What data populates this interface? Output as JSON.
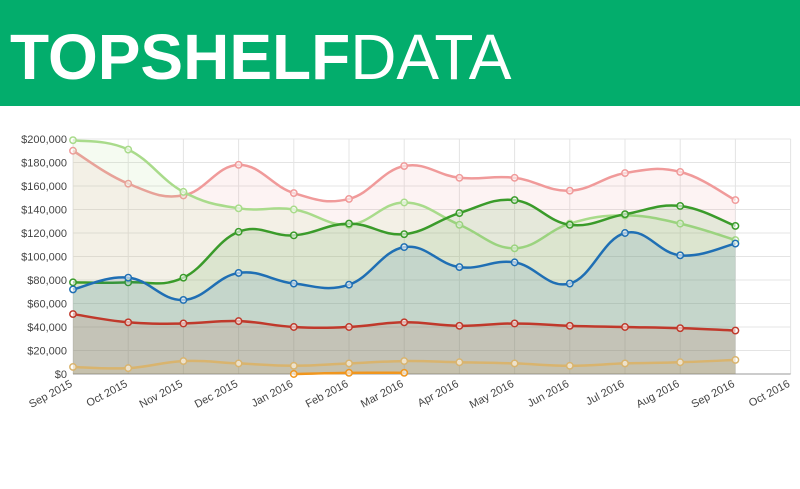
{
  "header": {
    "brand_bold": "TOPSHELF",
    "brand_light": "DATA"
  },
  "chart_data": {
    "type": "line",
    "categories": [
      "Sep 2015",
      "Oct 2015",
      "Nov 2015",
      "Dec 2015",
      "Jan 2016",
      "Feb 2016",
      "Mar 2016",
      "Apr 2016",
      "May 2016",
      "Jun 2016",
      "Jul 2016",
      "Aug 2016",
      "Sep 2016",
      "Oct 2016"
    ],
    "ylim": [
      0,
      200000
    ],
    "yticks": [
      {
        "value": 0,
        "label": "$0"
      },
      {
        "value": 20000,
        "label": "$20,000"
      },
      {
        "value": 40000,
        "label": "$40,000"
      },
      {
        "value": 60000,
        "label": "$60,000"
      },
      {
        "value": 80000,
        "label": "$80,000"
      },
      {
        "value": 100000,
        "label": "$100,000"
      },
      {
        "value": 120000,
        "label": "$120,000"
      },
      {
        "value": 140000,
        "label": "$140,000"
      },
      {
        "value": 160000,
        "label": "$160,000"
      },
      {
        "value": 180000,
        "label": "$180,000"
      },
      {
        "value": 200000,
        "label": "$200,000"
      }
    ],
    "grid": true,
    "series": [
      {
        "color": "#f09a9a",
        "values": [
          190000,
          162000,
          152000,
          178000,
          154000,
          149000,
          177000,
          167000,
          167000,
          156000,
          171000,
          172000,
          148000,
          null
        ]
      },
      {
        "color": "#a9db8b",
        "values": [
          199000,
          191000,
          155000,
          141000,
          140000,
          127000,
          146000,
          127000,
          107000,
          128000,
          135000,
          128000,
          114000,
          null
        ]
      },
      {
        "color": "#3a9b2a",
        "values": [
          78000,
          78000,
          82000,
          121000,
          118000,
          128000,
          119000,
          137000,
          148000,
          127000,
          136000,
          143000,
          126000,
          null
        ]
      },
      {
        "color": "#1f6fb4",
        "values": [
          72000,
          82000,
          63000,
          86000,
          77000,
          76000,
          108000,
          91000,
          95000,
          77000,
          120000,
          101000,
          111000,
          null
        ]
      },
      {
        "color": "#c0392b",
        "values": [
          51000,
          44000,
          43000,
          45000,
          40000,
          40000,
          44000,
          41000,
          43000,
          41000,
          40000,
          39000,
          37000,
          null
        ]
      },
      {
        "color": "#d9b46e",
        "values": [
          6000,
          5000,
          11000,
          9000,
          7000,
          9000,
          11000,
          10000,
          9000,
          7000,
          9000,
          10000,
          12000,
          null
        ]
      },
      {
        "color": "#f0961e",
        "values": [
          null,
          null,
          null,
          null,
          0,
          1000,
          1000,
          null,
          null,
          null,
          null,
          null,
          null,
          null
        ]
      }
    ]
  }
}
